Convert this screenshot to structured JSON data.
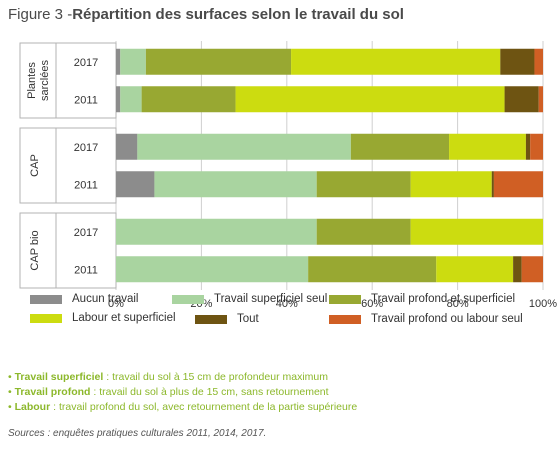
{
  "header": {
    "prefix": "Figure 3 -",
    "title": "Répartition des surfaces selon le travail du sol"
  },
  "chart_data": {
    "type": "bar",
    "orientation": "horizontal",
    "stacked": true,
    "xlim": [
      0,
      100
    ],
    "x_ticks": [
      "0%",
      "20%",
      "40%",
      "60%",
      "80%",
      "100%"
    ],
    "groups": [
      {
        "name": "Plantes sarclées",
        "years": [
          "2017",
          "2011"
        ]
      },
      {
        "name": "CAP",
        "years": [
          "2017",
          "2011"
        ]
      },
      {
        "name": "CAP bio",
        "years": [
          "2017",
          "2011"
        ]
      }
    ],
    "bar_labels": [
      "Plantes sarclées 2017",
      "Plantes sarclées 2011",
      "CAP 2017",
      "CAP 2011",
      "CAP bio 2017",
      "CAP bio 2011"
    ],
    "series": [
      {
        "name": "Aucun travail",
        "color": "#8c8c8c",
        "values": [
          1,
          1,
          5,
          9,
          0,
          0
        ]
      },
      {
        "name": "Travail superficiel seul",
        "color": "#a9d4a0",
        "values": [
          6,
          5,
          50,
          38,
          47,
          45
        ]
      },
      {
        "name": "Travail profond et superficiel",
        "color": "#98a832",
        "values": [
          34,
          22,
          23,
          22,
          22,
          30
        ]
      },
      {
        "name": "Labour et superficiel",
        "color": "#ccdc10",
        "values": [
          49,
          63,
          18,
          19,
          31,
          18
        ]
      },
      {
        "name": "Tout",
        "color": "#6e5412",
        "values": [
          8,
          8,
          1,
          0.5,
          0,
          2
        ]
      },
      {
        "name": "Travail profond ou labour seul",
        "color": "#d05f24",
        "values": [
          2,
          1,
          3,
          11.5,
          0,
          5
        ]
      }
    ],
    "grid": true,
    "legend_position": "bottom"
  },
  "notes": [
    {
      "term": "Travail superficiel",
      "text": " : travail du sol à 15 cm de profondeur maximum"
    },
    {
      "term": "Travail profond",
      "text": " : travail du sol à plus de 15 cm, sans retournement"
    },
    {
      "term": "Labour",
      "text": " : travail profond du sol, avec retournement de la partie supérieure"
    }
  ],
  "source": "Sources : enquêtes pratiques culturales 2011, 2014, 2017."
}
